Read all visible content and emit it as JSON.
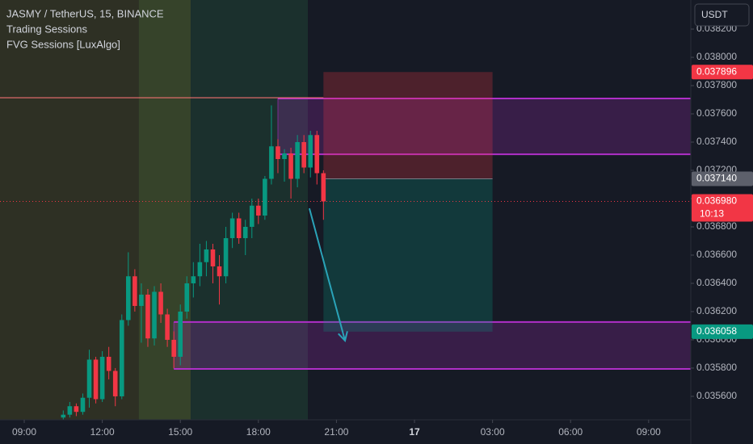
{
  "chart_data": {
    "type": "candlestick",
    "title": "JASMY / TetherUS, 15, BINANCE",
    "indicators": [
      "Trading Sessions",
      "FVG Sessions [LuxAlgo]"
    ],
    "units": "USDT",
    "up_color": "#089981",
    "down_color": "#f23645",
    "x": [
      10.5,
      10.75,
      11,
      11.25,
      11.5,
      11.75,
      12,
      12.25,
      12.5,
      12.75,
      13,
      13.25,
      13.5,
      13.75,
      14,
      14.25,
      14.5,
      14.75,
      15,
      15.25,
      15.5,
      15.75,
      16,
      16.25,
      16.5,
      16.75,
      17,
      17.25,
      17.5,
      17.75,
      18,
      18.25,
      18.5,
      18.75,
      19,
      19.25,
      19.5,
      19.75,
      20,
      20.25,
      20.5
    ],
    "open": [
      0.03545,
      0.03547,
      0.03553,
      0.03549,
      0.03559,
      0.03586,
      0.03558,
      0.03588,
      0.03578,
      0.0356,
      0.03614,
      0.03645,
      0.03624,
      0.03632,
      0.03601,
      0.03634,
      0.03618,
      0.036,
      0.03588,
      0.0362,
      0.0364,
      0.03645,
      0.03655,
      0.03664,
      0.03652,
      0.03645,
      0.03672,
      0.03686,
      0.03672,
      0.0368,
      0.03695,
      0.03688,
      0.03714,
      0.03737,
      0.03728,
      0.03732,
      0.03714,
      0.0374,
      0.03722,
      0.03745,
      0.03718
    ],
    "high": [
      0.0355,
      0.03556,
      0.03555,
      0.03562,
      0.03593,
      0.03588,
      0.03592,
      0.03595,
      0.0358,
      0.03618,
      0.03662,
      0.0365,
      0.0364,
      0.03636,
      0.03638,
      0.0364,
      0.03622,
      0.03606,
      0.03625,
      0.03645,
      0.03655,
      0.03668,
      0.0367,
      0.03668,
      0.0366,
      0.0368,
      0.0369,
      0.0369,
      0.03685,
      0.037,
      0.037,
      0.03716,
      0.03766,
      0.03742,
      0.03735,
      0.03736,
      0.03745,
      0.03745,
      0.03748,
      0.03748,
      0.0372
    ],
    "low": [
      0.03543,
      0.03545,
      0.03546,
      0.03547,
      0.03552,
      0.03555,
      0.03556,
      0.03572,
      0.03553,
      0.03558,
      0.0361,
      0.0362,
      0.03598,
      0.03595,
      0.03596,
      0.03612,
      0.03595,
      0.0358,
      0.03582,
      0.03615,
      0.0363,
      0.03638,
      0.03645,
      0.0364,
      0.03625,
      0.0364,
      0.03665,
      0.03668,
      0.0366,
      0.03672,
      0.03682,
      0.03685,
      0.0371,
      0.03718,
      0.03712,
      0.037,
      0.03708,
      0.03718,
      0.03715,
      0.0371,
      0.03685
    ],
    "close": [
      0.03547,
      0.03553,
      0.03549,
      0.03559,
      0.03586,
      0.03558,
      0.03588,
      0.03578,
      0.0356,
      0.03614,
      0.03645,
      0.03624,
      0.03632,
      0.03601,
      0.03634,
      0.03618,
      0.036,
      0.03588,
      0.0362,
      0.0364,
      0.03645,
      0.03655,
      0.03664,
      0.03652,
      0.03645,
      0.03672,
      0.03686,
      0.03672,
      0.0368,
      0.03695,
      0.03688,
      0.03714,
      0.03737,
      0.03728,
      0.03732,
      0.03714,
      0.0374,
      0.03722,
      0.03745,
      0.03718,
      0.03698
    ],
    "xlim": [
      8.068,
      34.62
    ],
    "ylim": [
      0.035434,
      0.038406
    ],
    "xticks": [
      {
        "value": 9,
        "label": "09:00"
      },
      {
        "value": 12,
        "label": "12:00"
      },
      {
        "value": 15,
        "label": "15:00"
      },
      {
        "value": 18,
        "label": "18:00"
      },
      {
        "value": 21,
        "label": "21:00"
      },
      {
        "value": 24,
        "label": "17"
      },
      {
        "value": 27,
        "label": "03:00"
      },
      {
        "value": 30,
        "label": "06:00"
      },
      {
        "value": 33,
        "label": "09:00"
      }
    ],
    "yticks": [
      {
        "value": 0.0356,
        "label": "0.035600"
      },
      {
        "value": 0.0358,
        "label": "0.035800"
      },
      {
        "value": 0.036,
        "label": "0.036000"
      },
      {
        "value": 0.0362,
        "label": "0.036200"
      },
      {
        "value": 0.0364,
        "label": "0.036400"
      },
      {
        "value": 0.0366,
        "label": "0.036600"
      },
      {
        "value": 0.0368,
        "label": "0.036800"
      },
      {
        "value": 0.037,
        "label": "0.037000"
      },
      {
        "value": 0.0372,
        "label": "0.037200"
      },
      {
        "value": 0.0374,
        "label": "0.037400"
      },
      {
        "value": 0.0376,
        "label": "0.037600"
      },
      {
        "value": 0.0378,
        "label": "0.037800"
      },
      {
        "value": 0.038,
        "label": "0.038000"
      },
      {
        "value": 0.0382,
        "label": "0.038200"
      }
    ],
    "sessions": [
      {
        "start": 6,
        "end": 13.4,
        "color": "#2e3024"
      },
      {
        "start": 13.4,
        "end": 15.4,
        "color": "#36432a"
      },
      {
        "start": 15.4,
        "end": 19.9,
        "color": "#1b302d"
      }
    ],
    "fvg": [
      {
        "start": 18.75,
        "top": 0.037709,
        "bottom": 0.037314,
        "color": "#b02fc8"
      },
      {
        "start": 14.75,
        "top": 0.036126,
        "bottom": 0.035794,
        "color": "#b02fc8"
      }
    ],
    "resistance_line": {
      "end": 20.5,
      "price": 0.037714,
      "color": "#f07070"
    },
    "position": {
      "start": 20.5,
      "end": 27,
      "entry": 0.03714,
      "stop": 0.037896,
      "target": 0.036058
    },
    "current_price": 0.03698,
    "arrow": {
      "x": [
        19.96,
        21.33
      ],
      "y": [
        0.036931,
        0.035994
      ],
      "color": "#2aa3b8"
    },
    "price_labels": [
      {
        "value": 0.037896,
        "label": "0.037896",
        "color": "#f23645"
      },
      {
        "value": 0.03714,
        "label": "0.037140",
        "color": "#5d606b"
      },
      {
        "value": 0.03698,
        "label": "0.036980",
        "sub": "10:13",
        "color": "#f23645"
      },
      {
        "value": 0.036058,
        "label": "0.036058",
        "color": "#089981"
      }
    ]
  }
}
